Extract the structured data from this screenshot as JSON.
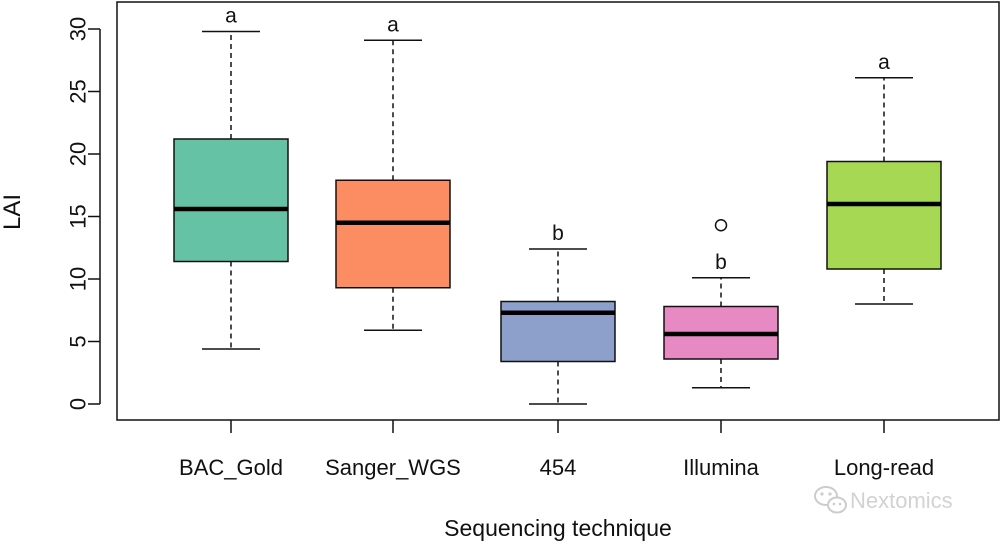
{
  "chart_data": {
    "type": "boxplot",
    "xlabel": "Sequencing technique",
    "ylabel": "LAI",
    "ylim": [
      0,
      30
    ],
    "yticks": [
      0,
      5,
      10,
      15,
      20,
      25,
      30
    ],
    "categories": [
      "BAC_Gold",
      "Sanger_WGS",
      "454",
      "Illumina",
      "Long-read"
    ],
    "boxes": [
      {
        "category": "BAC_Gold",
        "whisker_low": 4.4,
        "q1": 11.4,
        "median": 15.6,
        "q3": 21.2,
        "whisker_high": 29.8,
        "outliers": [],
        "group": "a",
        "color": "#66c2a5"
      },
      {
        "category": "Sanger_WGS",
        "whisker_low": 5.9,
        "q1": 9.3,
        "median": 14.5,
        "q3": 17.9,
        "whisker_high": 29.1,
        "outliers": [],
        "group": "a",
        "color": "#fc8d62"
      },
      {
        "category": "454",
        "whisker_low": 0.0,
        "q1": 3.4,
        "median": 7.3,
        "q3": 8.2,
        "whisker_high": 12.4,
        "outliers": [],
        "group": "b",
        "color": "#8da0cb"
      },
      {
        "category": "Illumina",
        "whisker_low": 1.3,
        "q1": 3.6,
        "median": 5.6,
        "q3": 7.8,
        "whisker_high": 10.1,
        "outliers": [
          14.3
        ],
        "group": "b",
        "color": "#e78ac3"
      },
      {
        "category": "Long-read",
        "whisker_low": 8.0,
        "q1": 10.8,
        "median": 16.0,
        "q3": 19.4,
        "whisker_high": 26.1,
        "outliers": [],
        "group": "a",
        "color": "#a6d854"
      }
    ]
  },
  "watermark": {
    "text": "Nextomics",
    "icon": "wechat-icon"
  }
}
